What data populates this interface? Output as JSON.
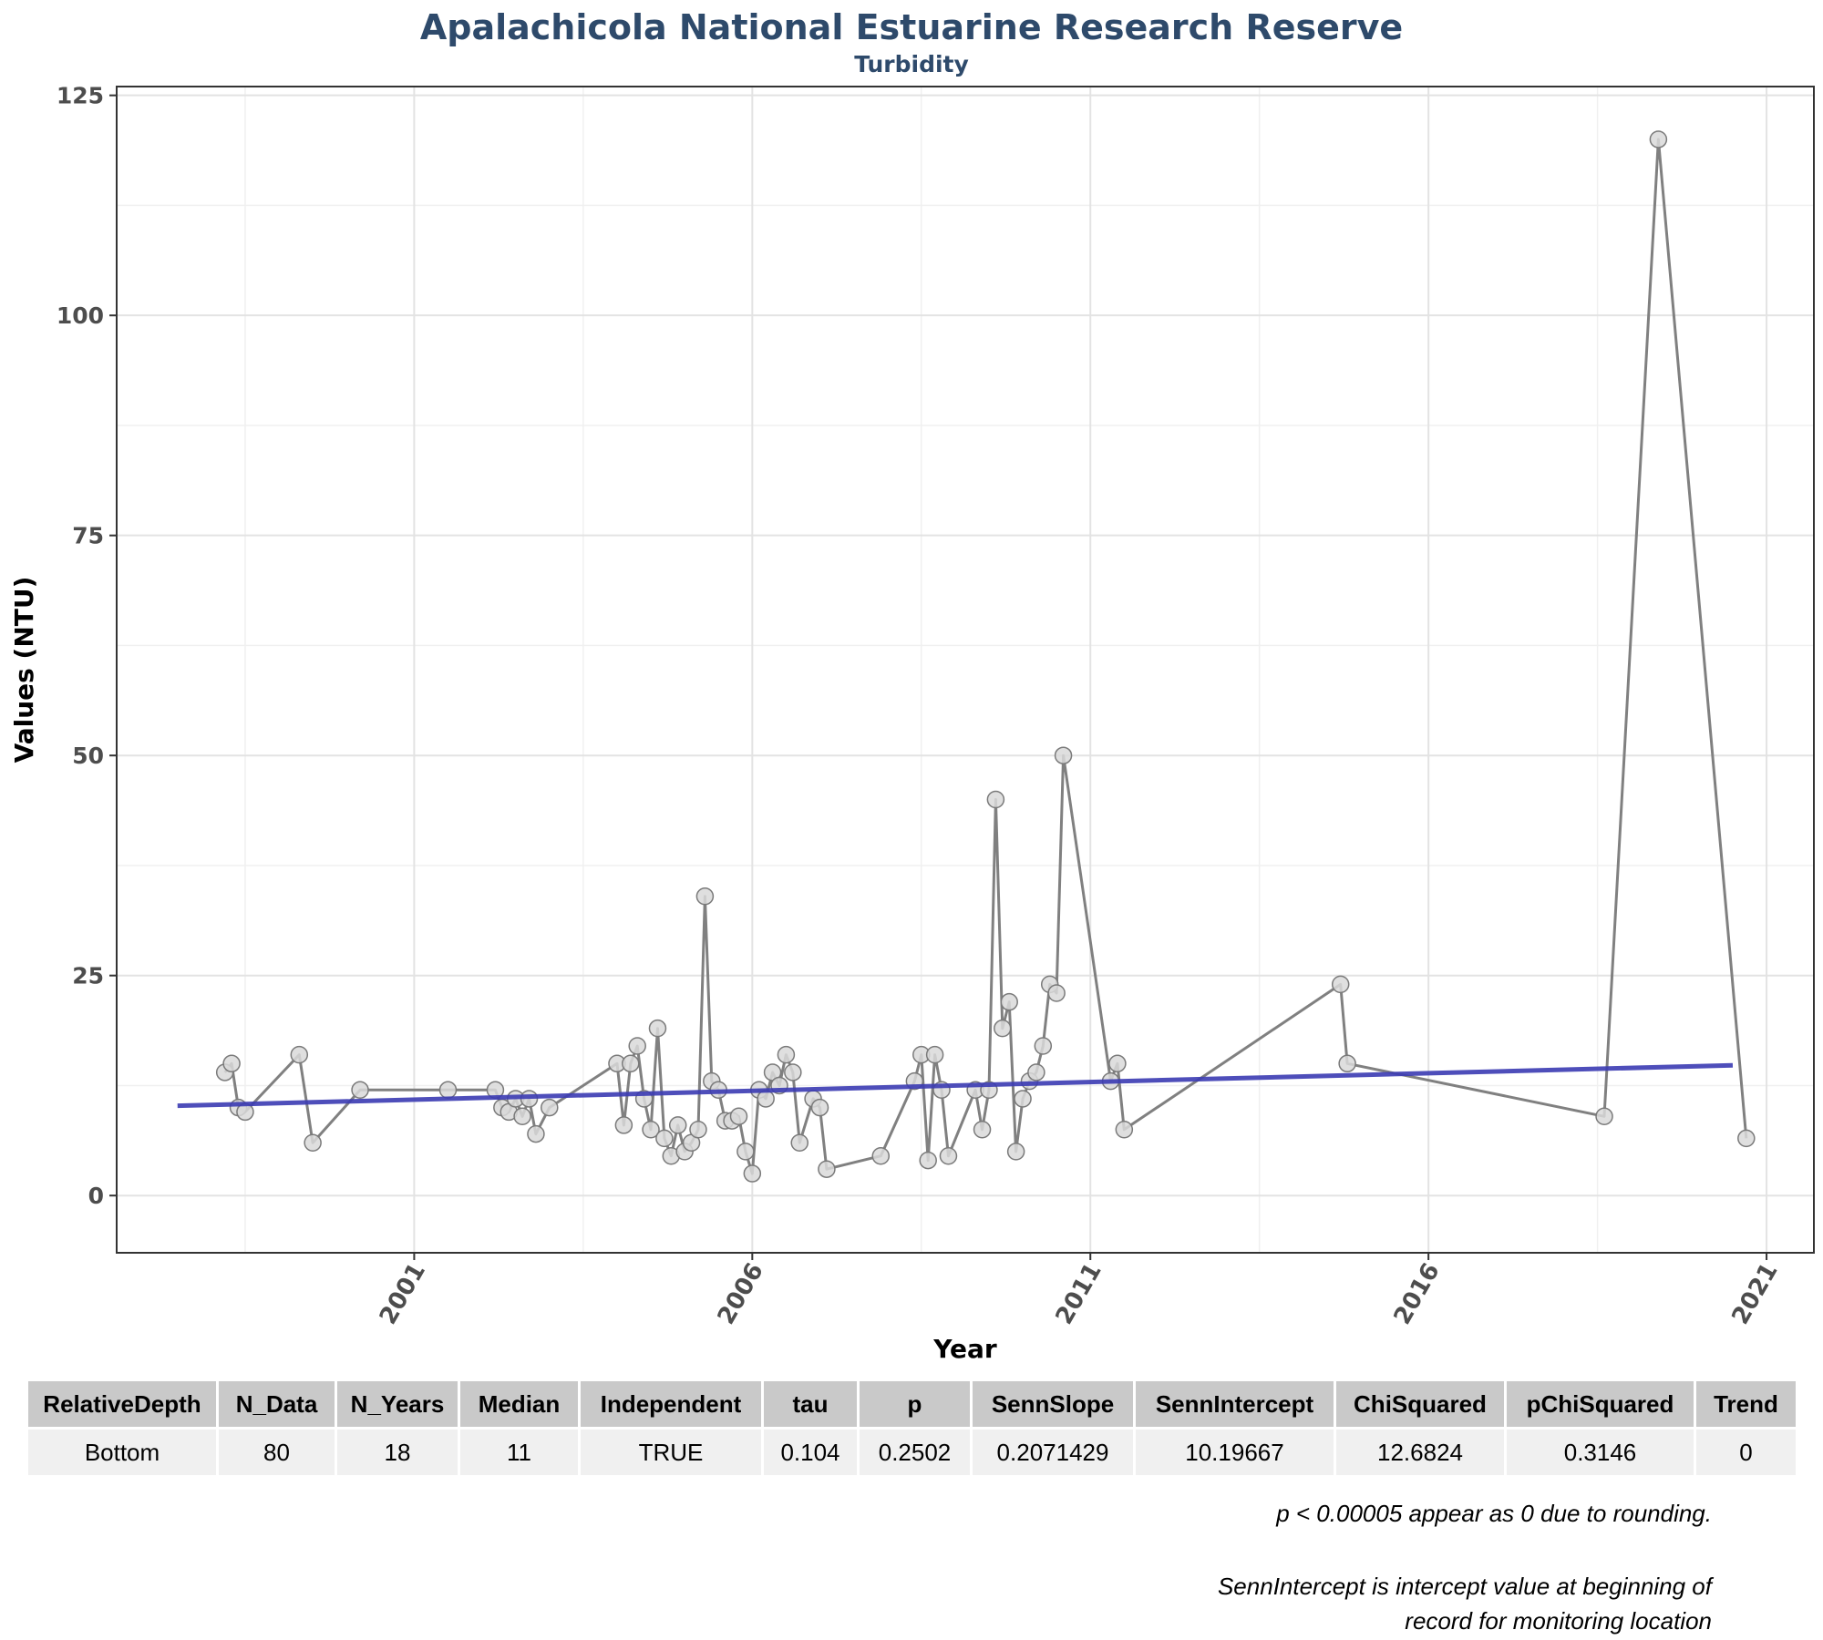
{
  "header": {
    "title": "Apalachicola National Estuarine Research Reserve",
    "subtitle": "Turbidity"
  },
  "chart_data": {
    "type": "line",
    "title": "Apalachicola National Estuarine Research Reserve",
    "subtitle": "Turbidity",
    "xlabel": "Year",
    "ylabel": "Values (NTU)",
    "xlim": [
      1996.6,
      2021.7
    ],
    "ylim": [
      -6.5,
      126
    ],
    "x_ticks": [
      2001,
      2006,
      2011,
      2016,
      2021
    ],
    "x_tick_labels": [
      "2001",
      "2006",
      "2011",
      "2016",
      "2021"
    ],
    "y_ticks": [
      0,
      25,
      50,
      75,
      100,
      125
    ],
    "y_tick_labels": [
      "0",
      "25",
      "50",
      "75",
      "100",
      "125"
    ],
    "grid": true,
    "legend": "none",
    "colors": {
      "series_line": "#808080",
      "point_fill": "#d9d9d9",
      "point_edge": "#7a7a7a",
      "trend": "#3b3bb3",
      "title": "#2e4a6b"
    },
    "series": [
      {
        "values": [
          [
            1998.2,
            14
          ],
          [
            1998.3,
            15
          ],
          [
            1998.4,
            10
          ],
          [
            1998.5,
            9.5
          ],
          [
            1999.3,
            16
          ],
          [
            1999.5,
            6
          ],
          [
            2000.2,
            12
          ],
          [
            2001.5,
            12
          ],
          [
            2002.2,
            12
          ],
          [
            2002.3,
            10
          ],
          [
            2002.4,
            9.5
          ],
          [
            2002.5,
            11
          ],
          [
            2002.6,
            9
          ],
          [
            2002.7,
            11
          ],
          [
            2002.8,
            7
          ],
          [
            2003.0,
            10
          ],
          [
            2004.0,
            15
          ],
          [
            2004.1,
            8
          ],
          [
            2004.2,
            15
          ],
          [
            2004.3,
            17
          ],
          [
            2004.4,
            11
          ],
          [
            2004.5,
            7.5
          ],
          [
            2004.6,
            19
          ],
          [
            2004.7,
            6.5
          ],
          [
            2004.8,
            4.5
          ],
          [
            2004.9,
            8
          ],
          [
            2005.0,
            5
          ],
          [
            2005.1,
            6
          ],
          [
            2005.2,
            7.5
          ],
          [
            2005.3,
            34
          ],
          [
            2005.4,
            13
          ],
          [
            2005.5,
            12
          ],
          [
            2005.6,
            8.5
          ],
          [
            2005.7,
            8.5
          ],
          [
            2005.8,
            9
          ],
          [
            2005.9,
            5
          ],
          [
            2006.0,
            2.5
          ],
          [
            2006.1,
            12
          ],
          [
            2006.2,
            11
          ],
          [
            2006.3,
            14
          ],
          [
            2006.4,
            12.5
          ],
          [
            2006.5,
            16
          ],
          [
            2006.6,
            14
          ],
          [
            2006.7,
            6
          ],
          [
            2006.9,
            11
          ],
          [
            2007.0,
            10
          ],
          [
            2007.1,
            3
          ],
          [
            2007.9,
            4.5
          ],
          [
            2008.4,
            13
          ],
          [
            2008.5,
            16
          ],
          [
            2008.6,
            4
          ],
          [
            2008.7,
            16
          ],
          [
            2008.8,
            12
          ],
          [
            2008.9,
            4.5
          ],
          [
            2009.3,
            12
          ],
          [
            2009.4,
            7.5
          ],
          [
            2009.5,
            12
          ],
          [
            2009.6,
            45
          ],
          [
            2009.7,
            19
          ],
          [
            2009.8,
            22
          ],
          [
            2009.9,
            5
          ],
          [
            2010.0,
            11
          ],
          [
            2010.1,
            13
          ],
          [
            2010.2,
            14
          ],
          [
            2010.3,
            17
          ],
          [
            2010.4,
            24
          ],
          [
            2010.5,
            23
          ],
          [
            2010.6,
            50
          ],
          [
            2011.3,
            13
          ],
          [
            2011.4,
            15
          ],
          [
            2011.5,
            7.5
          ],
          [
            2014.7,
            24
          ],
          [
            2014.8,
            15
          ],
          [
            2018.6,
            9
          ],
          [
            2019.4,
            120
          ],
          [
            2020.7,
            6.5
          ]
        ]
      }
    ],
    "trend_line": {
      "x": [
        1997.5,
        2020.5
      ],
      "y": [
        10.2,
        14.8
      ]
    }
  },
  "x_axis_title": "Year",
  "y_axis_title": "Values (NTU)",
  "stats_table": {
    "columns": [
      "RelativeDepth",
      "N_Data",
      "N_Years",
      "Median",
      "Independent",
      "tau",
      "p",
      "SennSlope",
      "SennIntercept",
      "ChiSquared",
      "pChiSquared",
      "Trend"
    ],
    "rows": [
      [
        "Bottom",
        "80",
        "18",
        "11",
        "TRUE",
        "0.104",
        "0.2502",
        "0.2071429",
        "10.19667",
        "12.6824",
        "0.3146",
        "0"
      ]
    ]
  },
  "notes": {
    "rounding": "p < 0.00005 appear as 0 due to rounding.",
    "intercept_line1": "SennIntercept is intercept value at beginning of",
    "intercept_line2": "record for monitoring location"
  }
}
